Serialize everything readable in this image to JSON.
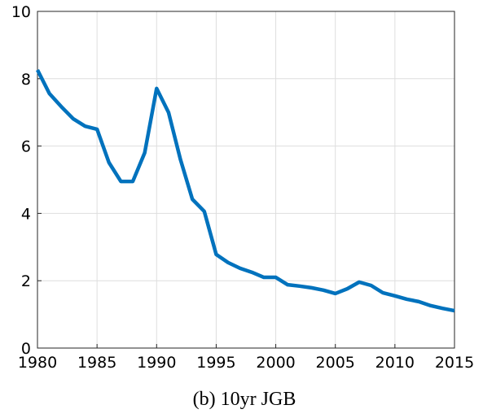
{
  "chart_data": {
    "type": "line",
    "title": "(b) 10yr JGB",
    "x": [
      1980,
      1981,
      1982,
      1983,
      1984,
      1985,
      1986,
      1987,
      1988,
      1989,
      1990,
      1991,
      1992,
      1993,
      1994,
      1995,
      1996,
      1997,
      1998,
      1999,
      2000,
      2001,
      2002,
      2003,
      2004,
      2005,
      2006,
      2007,
      2008,
      2009,
      2010,
      2011,
      2012,
      2013,
      2014,
      2015
    ],
    "series": [
      {
        "name": "10yr JGB",
        "color": "#0072bd",
        "values": [
          8.26,
          7.56,
          7.17,
          6.81,
          6.59,
          6.5,
          5.51,
          4.95,
          4.95,
          5.8,
          7.71,
          7.0,
          5.6,
          4.42,
          4.06,
          2.78,
          2.54,
          2.37,
          2.25,
          2.1,
          2.1,
          1.88,
          1.84,
          1.79,
          1.72,
          1.62,
          1.76,
          1.96,
          1.86,
          1.64,
          1.55,
          1.45,
          1.38,
          1.26,
          1.18,
          1.11
        ]
      }
    ],
    "xlim": [
      1980,
      2015
    ],
    "xticks": [
      1980,
      1985,
      1990,
      1995,
      2000,
      2005,
      2010,
      2015
    ],
    "ylim": [
      0,
      10
    ],
    "yticks": [
      0,
      2,
      4,
      6,
      8,
      10
    ],
    "grid": true
  }
}
